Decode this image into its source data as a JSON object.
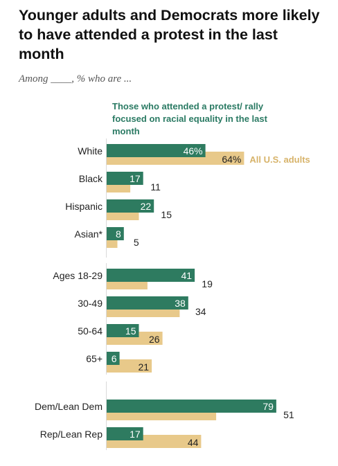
{
  "title": "Younger adults and Democrats more likely to have attended a protest in the last month",
  "subtitle": "Among ____, % who are ...",
  "colors": {
    "protest": "#2e7b60",
    "adults": "#e8c98a",
    "adults_label": "#d7b36a",
    "text": "#222222",
    "axis": "#d9d9d9"
  },
  "chart_data": {
    "type": "bar",
    "orientation": "horizontal",
    "categories": [
      "White",
      "Black",
      "Hispanic",
      "Asian*",
      "Ages 18-29",
      "30-49",
      "50-64",
      "65+",
      "Dem/Lean Dem",
      "Rep/Lean Rep"
    ],
    "series": [
      {
        "name": "Those who attended a protest/ rally focused on racial equality in the last month",
        "values": [
          46,
          17,
          22,
          8,
          41,
          38,
          15,
          6,
          79,
          17
        ],
        "labels": [
          "46%",
          "17",
          "22",
          "8",
          "41",
          "38",
          "15",
          "6",
          "79",
          "17"
        ]
      },
      {
        "name": "All U.S. adults",
        "values": [
          64,
          11,
          15,
          5,
          19,
          34,
          26,
          21,
          51,
          44
        ],
        "labels": [
          "64%",
          "11",
          "15",
          "5",
          "19",
          "34",
          "26",
          "21",
          "51",
          "44"
        ]
      }
    ],
    "xlim": [
      0,
      100
    ],
    "legend_placement": "inline"
  }
}
